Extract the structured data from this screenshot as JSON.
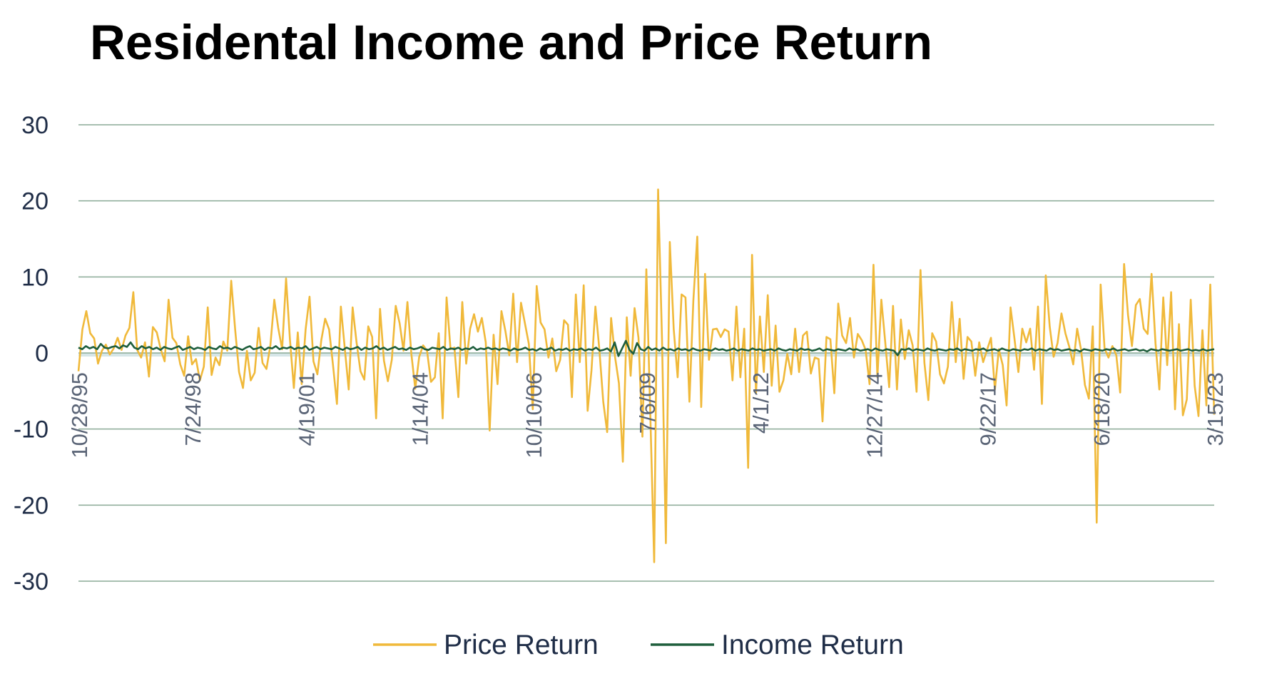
{
  "chart_data": {
    "type": "line",
    "title": "Residental Income and Price Return",
    "xlabel": "",
    "ylabel": "",
    "ylim": [
      -30,
      30
    ],
    "yticks": [
      "30",
      "20",
      "10",
      "0",
      "-10",
      "-20",
      "-30"
    ],
    "ytick_values": [
      30,
      20,
      10,
      0,
      -10,
      -20,
      -30
    ],
    "x_tick_labels": [
      "10/28/95",
      "7/24/98",
      "4/19/01",
      "1/14/04",
      "10/10/06",
      "7/6/09",
      "4/1/12",
      "12/27/14",
      "9/22/17",
      "6/18/20",
      "3/15/23"
    ],
    "x_range": [
      "10/28/95",
      "3/15/23"
    ],
    "grid": "horizontal",
    "legend_position": "bottom",
    "colors": {
      "price": "#f0b93a",
      "income": "#1e5e3c",
      "grid": "#8aaa96",
      "zero_band": "#d6e6e8"
    },
    "series": [
      {
        "name": "Price Return",
        "color": "#f0b93a",
        "values": [
          -2.4,
          3.1,
          5.5,
          2.6,
          1.9,
          -1.4,
          0.3,
          1.1,
          -0.2,
          0.6,
          2.0,
          0.4,
          2.3,
          3.3,
          8.0,
          0.4,
          -0.6,
          1.4,
          -3.1,
          3.4,
          2.7,
          0.5,
          -1.1,
          7.0,
          2.0,
          1.3,
          -1.5,
          -3.0,
          2.2,
          -1.5,
          -0.8,
          -3.6,
          -1.8,
          6.0,
          -2.9,
          -0.6,
          -1.6,
          1.5,
          0.3,
          9.5,
          3.1,
          -2.5,
          -4.6,
          0.3,
          -3.6,
          -2.6,
          3.3,
          -1.3,
          -2.1,
          1.0,
          7.0,
          3.3,
          0.5,
          9.8,
          1.8,
          -4.6,
          2.7,
          -4.1,
          3.1,
          7.4,
          -1.1,
          -2.8,
          1.7,
          4.5,
          3.1,
          -1.6,
          -6.7,
          6.1,
          0.6,
          -4.8,
          6.0,
          1.4,
          -2.4,
          -3.5,
          3.5,
          2.1,
          -8.6,
          5.8,
          -1.0,
          -3.7,
          -0.9,
          6.2,
          3.9,
          0.3,
          6.7,
          -0.1,
          -4.7,
          -0.5,
          1.0,
          0.3,
          -3.8,
          -3.2,
          2.6,
          -8.6,
          7.3,
          0.5,
          0.7,
          -5.8,
          6.7,
          -1.4,
          3.2,
          5.1,
          2.8,
          4.6,
          1.4,
          -10.2,
          2.4,
          -4.1,
          5.5,
          2.9,
          -0.3,
          7.8,
          -1.2,
          6.6,
          3.9,
          1.2,
          -7.4,
          8.8,
          4.0,
          3.1,
          -0.6,
          1.9,
          -2.4,
          -0.9,
          4.3,
          3.7,
          -5.8,
          7.7,
          -1.2,
          8.9,
          -7.6,
          -2.3,
          6.1,
          0.5,
          -6.4,
          -10.4,
          4.6,
          -0.5,
          -4.0,
          -14.3,
          4.7,
          -3.0,
          5.9,
          2.0,
          -11.0,
          11.0,
          -7.8,
          -27.5,
          21.5,
          1.7,
          -25.0,
          14.6,
          3.1,
          -3.2,
          7.7,
          7.3,
          -6.4,
          6.9,
          15.3,
          -7.1,
          10.4,
          -0.9,
          3.1,
          3.2,
          2.1,
          3.1,
          2.8,
          -3.6,
          6.1,
          -3.2,
          3.2,
          -15.1,
          12.9,
          -5.3,
          4.8,
          -2.5,
          7.6,
          -4.3,
          3.6,
          -5.1,
          -3.6,
          -0.1,
          -2.8,
          3.2,
          -2.5,
          2.3,
          2.8,
          -2.7,
          -0.6,
          -0.8,
          -9.0,
          2.1,
          1.8,
          -5.3,
          6.5,
          2.3,
          1.3,
          4.6,
          -0.6,
          2.5,
          1.7,
          0.4,
          -4.1,
          11.6,
          -3.2,
          7.0,
          1.4,
          -4.5,
          6.2,
          -4.8,
          4.4,
          -0.8,
          3.0,
          1.0,
          -5.1,
          10.9,
          -1.3,
          -6.2,
          2.6,
          1.5,
          -2.8,
          -4.0,
          -1.8,
          6.7,
          -1.2,
          4.5,
          -3.4,
          2.1,
          1.5,
          -3.0,
          1.4,
          -1.2,
          0.4,
          2.0,
          -4.8,
          0.5,
          -1.6,
          -6.9,
          6.0,
          1.9,
          -2.5,
          3.2,
          1.4,
          3.2,
          -2.2,
          6.1,
          -6.7,
          10.2,
          3.5,
          -0.5,
          1.3,
          5.2,
          2.6,
          0.8,
          -1.5,
          3.2,
          0.4,
          -4.2,
          -6.0,
          3.5,
          -22.3,
          9.0,
          0.6,
          -0.6,
          0.9,
          -0.3,
          -5.2,
          11.7,
          5.0,
          0.9,
          6.3,
          7.1,
          3.2,
          2.5,
          10.4,
          1.3,
          -4.8,
          7.3,
          -1.6,
          8.0,
          -7.4,
          3.8,
          -8.2,
          -6.1,
          7.0,
          -4.3,
          -8.3,
          3.0,
          -6.9,
          9.0,
          -8.1
        ]
      },
      {
        "name": "Income Return",
        "color": "#1e5e3c",
        "values": [
          0.7,
          0.5,
          0.9,
          0.6,
          0.8,
          0.5,
          1.2,
          0.7,
          0.6,
          0.8,
          0.9,
          0.6,
          1.0,
          0.8,
          1.4,
          0.7,
          0.5,
          0.9,
          0.6,
          0.8,
          0.5,
          0.7,
          0.4,
          0.8,
          0.6,
          0.5,
          0.7,
          0.9,
          0.4,
          0.6,
          0.8,
          0.5,
          0.7,
          0.6,
          0.4,
          0.8,
          0.6,
          0.5,
          0.9,
          0.6,
          0.7,
          0.5,
          0.8,
          0.6,
          0.4,
          0.7,
          0.9,
          0.5,
          0.6,
          0.8,
          0.4,
          0.7,
          0.6,
          0.9,
          0.5,
          0.7,
          0.6,
          0.8,
          0.5,
          0.7,
          0.6,
          0.9,
          0.4,
          0.6,
          0.8,
          0.5,
          0.7,
          0.6,
          0.5,
          0.8,
          0.6,
          0.4,
          0.7,
          0.5,
          0.6,
          0.8,
          0.4,
          0.7,
          0.5,
          0.6,
          0.9,
          0.5,
          0.7,
          0.4,
          0.6,
          0.8,
          0.5,
          0.6,
          0.4,
          0.7,
          0.5,
          0.6,
          0.8,
          0.5,
          0.4,
          0.7,
          0.6,
          0.5,
          0.8,
          0.4,
          0.6,
          0.5,
          0.7,
          0.4,
          0.6,
          0.5,
          0.8,
          0.4,
          0.6,
          0.5,
          0.7,
          0.5,
          0.6,
          0.4,
          0.6,
          0.5,
          0.3,
          0.6,
          0.4,
          0.5,
          0.7,
          0.4,
          0.5,
          0.3,
          0.6,
          0.4,
          0.5,
          0.7,
          0.3,
          0.5,
          0.4,
          0.6,
          0.3,
          0.5,
          0.4,
          0.6,
          0.3,
          0.5,
          0.4,
          0.7,
          0.3,
          0.4,
          0.6,
          0.2,
          1.4,
          -0.4,
          0.6,
          1.6,
          0.4,
          -0.1,
          1.3,
          0.5,
          0.3,
          0.8,
          0.4,
          0.6,
          0.3,
          0.7,
          0.4,
          0.5,
          0.3,
          0.6,
          0.4,
          0.5,
          0.3,
          0.6,
          0.4,
          0.3,
          0.5,
          0.4,
          0.3,
          0.6,
          0.4,
          0.5,
          0.3,
          0.4,
          0.6,
          0.3,
          0.5,
          0.4,
          0.3,
          0.6,
          0.4,
          0.5,
          0.3,
          0.4,
          0.5,
          0.3,
          0.6,
          0.4,
          0.3,
          0.5,
          0.4,
          0.3,
          0.6,
          0.4,
          0.5,
          0.3,
          0.4,
          0.6,
          0.3,
          0.5,
          0.4,
          0.3,
          0.5,
          0.4,
          0.3,
          0.6,
          0.4,
          0.5,
          0.3,
          0.4,
          0.5,
          0.3,
          0.6,
          0.4,
          0.3,
          0.5,
          0.4,
          0.3,
          -0.3,
          0.5,
          0.4,
          0.6,
          0.3,
          0.5,
          0.4,
          0.3,
          0.6,
          0.4,
          0.3,
          0.5,
          0.4,
          0.3,
          0.5,
          0.4,
          0.6,
          0.3,
          0.5,
          0.4,
          0.3,
          0.5,
          0.4,
          0.6,
          0.3,
          0.4,
          0.5,
          0.3,
          0.6,
          0.4,
          0.3,
          0.5,
          0.4,
          0.3,
          0.5,
          0.4,
          0.6,
          0.3,
          0.5,
          0.4,
          0.3,
          0.6,
          0.4,
          0.5,
          0.3,
          0.4,
          0.5,
          0.3,
          0.4,
          0.2,
          0.5,
          0.4,
          0.3,
          0.5,
          0.4,
          0.3,
          0.5,
          0.4,
          0.6,
          0.3,
          0.4,
          0.5,
          0.3,
          0.4,
          0.5,
          0.3,
          0.4,
          0.2,
          0.5,
          0.4,
          0.3,
          0.5,
          0.4,
          0.3,
          0.4,
          0.5,
          0.3,
          0.4,
          0.5,
          0.3,
          0.4,
          0.3,
          0.5,
          0.3,
          0.4,
          0.5
        ]
      }
    ]
  }
}
